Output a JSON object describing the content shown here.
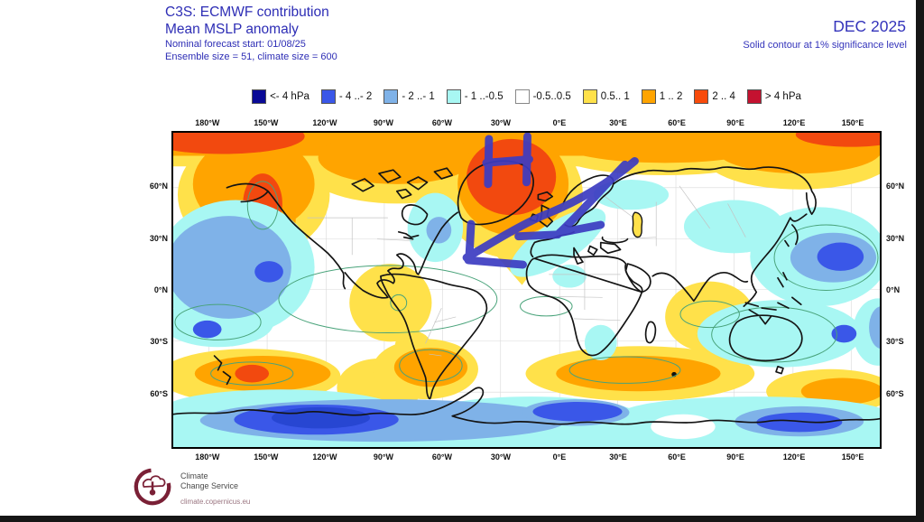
{
  "header": {
    "title": "C3S: ECMWF contribution",
    "subtitle": "Mean MSLP anomaly",
    "forecast_start": "Nominal forecast start: 01/08/25",
    "ensemble": "Ensemble size = 51, climate size = 600",
    "date_label": "DEC 2025",
    "significance_note": "Solid contour at 1% significance level",
    "text_color": "#2d2db5"
  },
  "legend": {
    "items": [
      {
        "label": "<- 4 hPa",
        "color": "#0a0a96"
      },
      {
        "label": "- 4 ..- 2",
        "color": "#3a57e8"
      },
      {
        "label": "- 2 ..- 1",
        "color": "#7fb2e8"
      },
      {
        "label": "- 1 ..-0.5",
        "color": "#a8f7f3"
      },
      {
        "label": "-0.5..0.5",
        "color": "#ffffff"
      },
      {
        "label": "0.5.. 1",
        "color": "#ffe14a"
      },
      {
        "label": "1 .. 2",
        "color": "#ffa400"
      },
      {
        "label": "2 .. 4",
        "color": "#f84b0b"
      },
      {
        "label": "> 4 hPa",
        "color": "#c41230"
      }
    ]
  },
  "map_axes": {
    "lon": [
      "180°W",
      "150°W",
      "120°W",
      "90°W",
      "60°W",
      "30°W",
      "0°E",
      "30°E",
      "60°E",
      "90°E",
      "120°E",
      "150°E"
    ],
    "lat": [
      "60°N",
      "30°N",
      "0°N",
      "30°S",
      "60°S"
    ]
  },
  "annotations": {
    "high_symbol": "H",
    "color": "#3c3cc2",
    "description": "Hand-drawn blue 'H' over the Greenland–Iceland positive anomaly, with two arrows sweeping from Scandinavia south-west toward Iberia and the subtropical Atlantic"
  },
  "footer": {
    "logo_line1": "Climate",
    "logo_line2": "Change Service",
    "logo_url": "climate.copernicus.eu"
  },
  "chart_data": {
    "type": "heatmap",
    "subtype": "filled-contour world map, equirectangular",
    "title": "Mean MSLP anomaly — DEC 2025 (C3S: ECMWF contribution)",
    "units": "hPa",
    "forecast_start": "01/08/25",
    "ensemble_size": 51,
    "climate_size": 600,
    "significance": "Solid contour at 1% significance level",
    "lon_ticks": [
      "180°W",
      "150°W",
      "120°W",
      "90°W",
      "60°W",
      "30°W",
      "0°E",
      "30°E",
      "60°E",
      "90°E",
      "120°E",
      "150°E"
    ],
    "lat_ticks": [
      "60°N",
      "30°N",
      "0°N",
      "30°S",
      "60°S"
    ],
    "scale_bins": [
      "<-4",
      "-4..-2",
      "-2..-1",
      "-1..-0.5",
      "-0.5..0.5",
      "0.5..1",
      "1..2",
      "2..4",
      ">4"
    ],
    "scale_colors": [
      "#0a0a96",
      "#3a57e8",
      "#7fb2e8",
      "#a8f7f3",
      "#ffffff",
      "#ffe14a",
      "#ffa400",
      "#f84b0b",
      "#c41230"
    ],
    "regions": [
      {
        "area": "Arctic belt / Greenland–Iceland",
        "anomaly_hPa": "+2 to +4"
      },
      {
        "area": "Alaska / Yukon",
        "anomaly_hPa": "+2 to +4"
      },
      {
        "area": "Northern Canada",
        "anomaly_hPa": "+1 to +2"
      },
      {
        "area": "Northeast Pacific (Gulf of Alaska)",
        "anomaly_hPa": "-2 to -1, core -4 to -2"
      },
      {
        "area": "Baffin Bay / Labrador",
        "anomaly_hPa": "-1 to -0.5, core -2 to -1"
      },
      {
        "area": "Southern USA / Mexico",
        "anomaly_hPa": "+0.5 to +1"
      },
      {
        "area": "NE Atlantic into NW & Central Europe",
        "anomaly_hPa": "-1 to -0.5"
      },
      {
        "area": "Siberia",
        "anomaly_hPa": "-1 to -0.5"
      },
      {
        "area": "NW Pacific east of Japan/Kuril",
        "anomaly_hPa": "-2 to -1, core -4 to -2"
      },
      {
        "area": "India / Tibetan Plateau",
        "anomaly_hPa": "+0.5 to +1"
      },
      {
        "area": "Tropics (most longitudes)",
        "anomaly_hPa": "-0.5 to +0.5"
      },
      {
        "area": "Central South America",
        "anomaly_hPa": "+0.5 to +1"
      },
      {
        "area": "SW South Pacific near New Zealand",
        "anomaly_hPa": "-1 to -0.5, core -2 to -1"
      },
      {
        "area": "South Pacific storm track ~55°S",
        "anomaly_hPa": "+1 to +2, core +2 to +4"
      },
      {
        "area": "Patagonia / SW South Atlantic",
        "anomaly_hPa": "+1 to +2"
      },
      {
        "area": "South Indian Ocean ~45°S",
        "anomaly_hPa": "+1 to +2"
      },
      {
        "area": "Australia / Coral Sea",
        "anomaly_hPa": "-1 to -0.5, spot -2 to -1"
      },
      {
        "area": "Antarctic coastal belt",
        "anomaly_hPa": "-2 to -1, core -4 to -2"
      }
    ],
    "hand_annotations": [
      "Blue 'H' drawn over Greenland/Iceland high-pressure anomaly",
      "Long blue arrow from Scandinavia toward subtropical Atlantic off West Africa",
      "Shorter blue arrow from Scandinavia toward Iberia/Western Europe"
    ],
    "legend_position": "top, horizontal",
    "grid": "faint 30° graticule"
  }
}
